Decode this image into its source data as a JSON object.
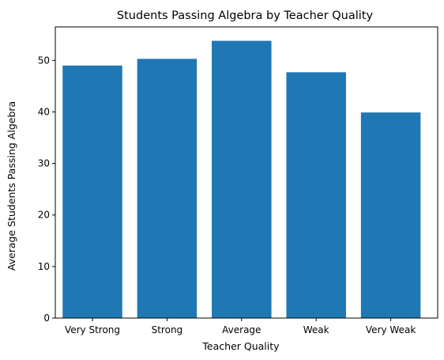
{
  "chart_data": {
    "type": "bar",
    "title": "Students Passing Algebra by Teacher Quality",
    "xlabel": "Teacher Quality",
    "ylabel": "Average Students Passing Algebra",
    "categories": [
      "Very Strong",
      "Strong",
      "Average",
      "Weak",
      "Very Weak"
    ],
    "values": [
      49.0,
      50.3,
      53.8,
      47.7,
      39.9
    ],
    "ylim": [
      0,
      56.5
    ],
    "yticks": [
      0,
      10,
      20,
      30,
      40,
      50
    ],
    "bar_color": "#1f77b4",
    "grid": false,
    "legend": "none"
  }
}
